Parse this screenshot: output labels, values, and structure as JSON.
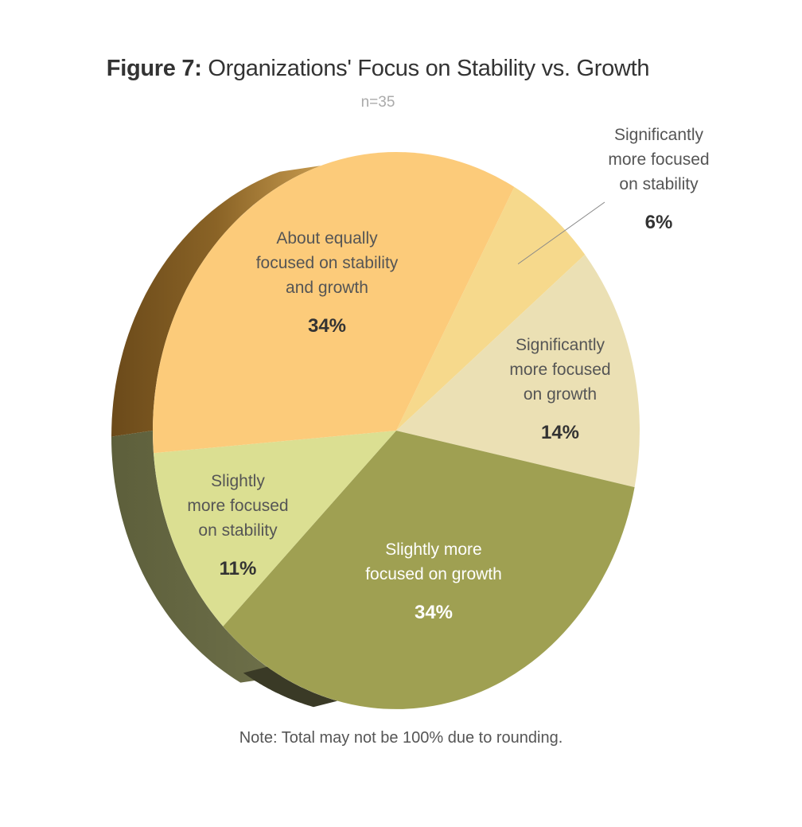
{
  "header": {
    "figure_label": "Figure 7:",
    "title": "Organizations' Focus on Stability vs. Growth",
    "subtitle": "n=35"
  },
  "note": "Note: Total may not be 100% due to rounding.",
  "chart_data": {
    "type": "pie",
    "title": "Figure 7: Organizations' Focus on Stability vs. Growth",
    "subtitle": "n=35",
    "slices": [
      {
        "lines": [
          "Significantly",
          "more focused",
          "on stability"
        ],
        "value": 6,
        "value_label": "6%",
        "color": "#F6D98C"
      },
      {
        "lines": [
          "Significantly",
          "more focused",
          "on growth"
        ],
        "value": 14,
        "value_label": "14%",
        "color": "#EBE0B4"
      },
      {
        "lines": [
          "Slightly more",
          "focused on growth"
        ],
        "value": 34,
        "value_label": "34%",
        "color": "#9FA052"
      },
      {
        "lines": [
          "Slightly",
          "more focused",
          "on stability"
        ],
        "value": 11,
        "value_label": "11%",
        "color": "#DBDF92"
      },
      {
        "lines": [
          "About equally",
          "focused on stability",
          "and growth"
        ],
        "value": 34,
        "value_label": "34%",
        "color": "#FCCB7A"
      }
    ],
    "note": "Note: Total may not be 100% due to rounding."
  }
}
